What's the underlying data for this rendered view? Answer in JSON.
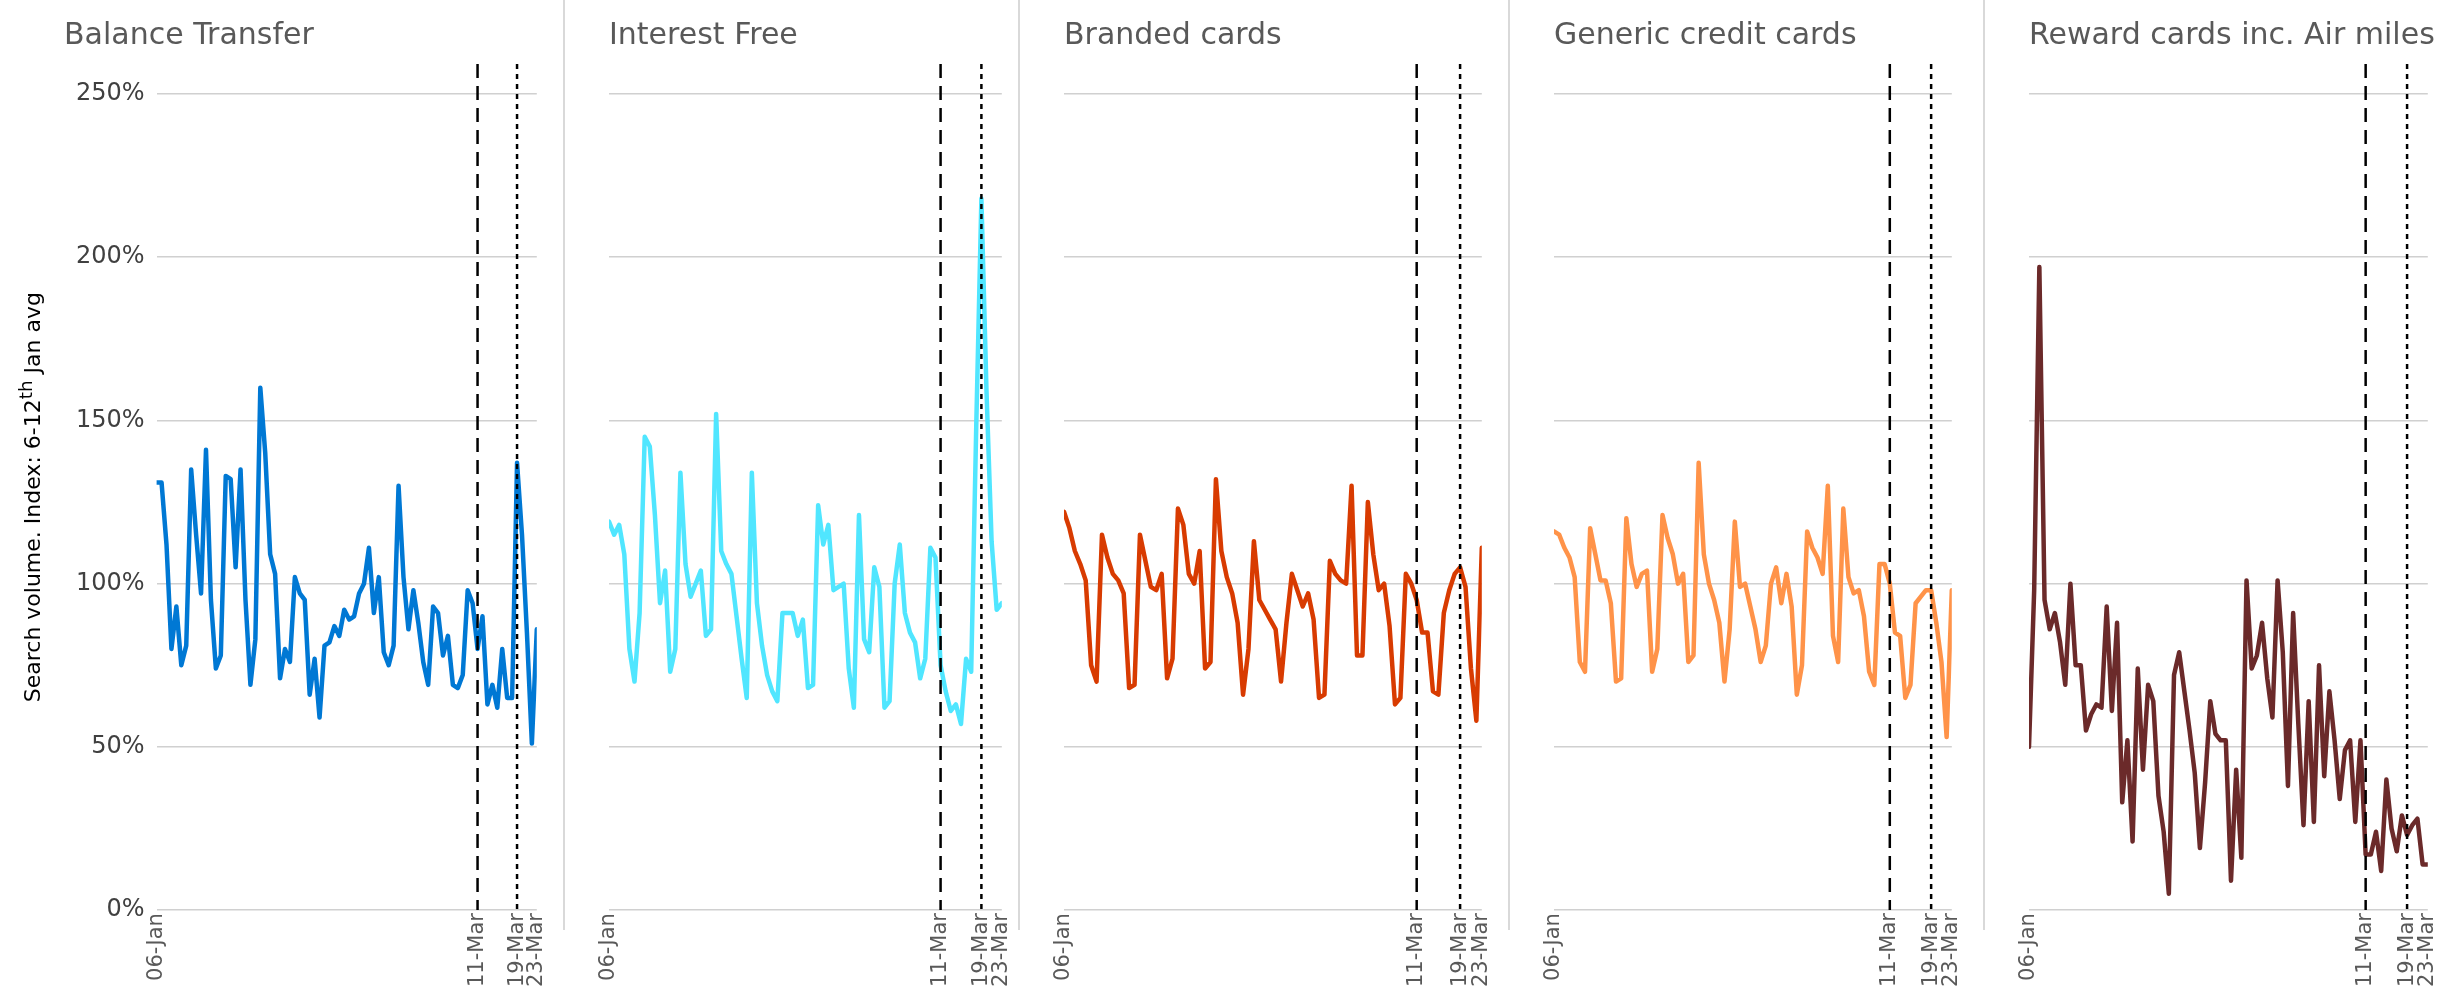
{
  "chart_data": [
    {
      "type": "line",
      "title": "Balance Transfer",
      "ylabel": "Search volume. Index: 6-12$^{th}$ Jan avg",
      "marker": "none",
      "grid": "y",
      "x": [
        "--01-06",
        "--01-07",
        "--01-08",
        "--01-09",
        "--01-10",
        "--01-11",
        "--01-12",
        "--01-13",
        "--01-14",
        "--01-15",
        "--01-16",
        "--01-17",
        "--01-18",
        "--01-19",
        "--01-20",
        "--01-21",
        "--01-22",
        "--01-23",
        "--01-24",
        "--01-25",
        "--01-26",
        "--01-27",
        "--01-28",
        "--01-29",
        "--01-30",
        "--01-31",
        "--02-01",
        "--02-02",
        "--02-03",
        "--02-04",
        "--02-05",
        "--02-06",
        "--02-07",
        "--02-08",
        "--02-09",
        "--02-10",
        "--02-11",
        "--02-12",
        "--02-13",
        "--02-14",
        "--02-15",
        "--02-16",
        "--02-17",
        "--02-18",
        "--02-19",
        "--02-20",
        "--02-21",
        "--02-22",
        "--02-23",
        "--02-24",
        "--02-25",
        "--02-26",
        "--02-27",
        "--02-28",
        "--02-29",
        "--03-01",
        "--03-02",
        "--03-03",
        "--03-04",
        "--03-05",
        "--03-06",
        "--03-07",
        "--03-08",
        "--03-09",
        "--03-10",
        "--03-11",
        "--03-12",
        "--03-13",
        "--03-14",
        "--03-15",
        "--03-16",
        "--03-17",
        "--03-18",
        "--03-19",
        "--03-20",
        "--03-21",
        "--03-22",
        "--03-23"
      ],
      "series": [
        {
          "color": "#0078d4",
          "values": [
            131,
            131,
            112,
            80,
            93,
            75,
            81,
            135,
            115,
            97,
            141,
            95,
            74,
            78,
            133,
            132,
            105,
            135,
            95,
            69,
            83,
            160,
            140,
            109,
            103,
            71,
            80,
            76,
            102,
            97,
            95,
            66,
            77,
            59,
            81,
            82,
            87,
            84,
            92,
            89,
            90,
            97,
            100,
            111,
            91,
            102,
            79,
            75,
            81,
            130,
            102,
            86,
            98,
            88,
            76,
            69,
            93,
            91,
            78,
            84,
            69,
            68,
            72,
            98,
            94,
            80,
            90,
            63,
            69,
            62,
            80,
            65,
            65,
            137,
            115,
            85,
            51,
            86
          ]
        }
      ],
      "xlim": [
        "--01-06",
        "--03-23"
      ],
      "xticks": [
        {
          "value": "--01-06",
          "label": "06-Jan"
        },
        {
          "value": "--03-11",
          "label": "11-Mar"
        },
        {
          "value": "--03-19",
          "label": "19-Mar"
        },
        {
          "value": "--03-23",
          "label": "23-Mar"
        }
      ],
      "ylim": [
        0,
        250
      ],
      "yticks": [
        {
          "value": 0,
          "label": "0%"
        },
        {
          "value": 50,
          "label": "50%"
        },
        {
          "value": 100,
          "label": "100%"
        },
        {
          "value": 150,
          "label": "150%"
        },
        {
          "value": 200,
          "label": "200%"
        },
        {
          "value": 250,
          "label": "250%"
        }
      ],
      "ref_lines": [
        {
          "axis": "x",
          "value": "--03-11",
          "color": "#000000",
          "line_style": "dashed"
        },
        {
          "axis": "x",
          "value": "--03-19",
          "color": "#000000",
          "line_style": "dotted"
        }
      ]
    },
    {
      "type": "line",
      "title": "Interest Free",
      "marker": "none",
      "grid": "y",
      "tick_labels": "x",
      "x": [
        "--01-06",
        "--01-07",
        "--01-08",
        "--01-09",
        "--01-10",
        "--01-11",
        "--01-12",
        "--01-13",
        "--01-14",
        "--01-15",
        "--01-16",
        "--01-17",
        "--01-18",
        "--01-19",
        "--01-20",
        "--01-21",
        "--01-22",
        "--01-23",
        "--01-24",
        "--01-25",
        "--01-26",
        "--01-27",
        "--01-28",
        "--01-29",
        "--01-30",
        "--01-31",
        "--02-01",
        "--02-02",
        "--02-03",
        "--02-04",
        "--02-05",
        "--02-06",
        "--02-07",
        "--02-08",
        "--02-09",
        "--02-10",
        "--02-11",
        "--02-12",
        "--02-13",
        "--02-14",
        "--02-15",
        "--02-16",
        "--02-17",
        "--02-18",
        "--02-19",
        "--02-20",
        "--02-21",
        "--02-22",
        "--02-23",
        "--02-24",
        "--02-25",
        "--02-26",
        "--02-27",
        "--02-28",
        "--02-29",
        "--03-01",
        "--03-02",
        "--03-03",
        "--03-04",
        "--03-05",
        "--03-06",
        "--03-07",
        "--03-08",
        "--03-09",
        "--03-10",
        "--03-11",
        "--03-12",
        "--03-13",
        "--03-14",
        "--03-15",
        "--03-16",
        "--03-17",
        "--03-18",
        "--03-19",
        "--03-20",
        "--03-21",
        "--03-22",
        "--03-23"
      ],
      "series": [
        {
          "color": "#50e6ff",
          "values": [
            119,
            115,
            118,
            109,
            80,
            70,
            91,
            145,
            142,
            121,
            94,
            104,
            73,
            80,
            134,
            106,
            96,
            100,
            104,
            84,
            86,
            152,
            110,
            106,
            103,
            90,
            77,
            65,
            134,
            94,
            81,
            72,
            67,
            64,
            91,
            91,
            91,
            84,
            89,
            68,
            69,
            124,
            112,
            118,
            98,
            99,
            100,
            74,
            62,
            121,
            83,
            79,
            105,
            99,
            62,
            64,
            100,
            112,
            91,
            85,
            82,
            71,
            77,
            111,
            108,
            75,
            67,
            61,
            63,
            57,
            77,
            73,
            149,
            218,
            159,
            113,
            92,
            94
          ]
        }
      ],
      "xlim": [
        "--01-06",
        "--03-23"
      ],
      "xticks": [
        {
          "value": "--01-06",
          "label": "06-Jan"
        },
        {
          "value": "--03-11",
          "label": "11-Mar"
        },
        {
          "value": "--03-19",
          "label": "19-Mar"
        },
        {
          "value": "--03-23",
          "label": "23-Mar"
        }
      ],
      "ylim": [
        0,
        250
      ],
      "yticks": [
        0,
        50,
        100,
        150,
        200,
        250
      ],
      "ref_lines": [
        {
          "axis": "x",
          "value": "--03-11",
          "color": "#000000",
          "line_style": "dashed"
        },
        {
          "axis": "x",
          "value": "--03-19",
          "color": "#000000",
          "line_style": "dotted"
        }
      ]
    },
    {
      "type": "line",
      "title": "Branded cards",
      "marker": "none",
      "grid": "y",
      "tick_labels": "x",
      "x": [
        "--01-06",
        "--01-07",
        "--01-08",
        "--01-09",
        "--01-10",
        "--01-11",
        "--01-12",
        "--01-13",
        "--01-14",
        "--01-15",
        "--01-16",
        "--01-17",
        "--01-18",
        "--01-19",
        "--01-20",
        "--01-21",
        "--01-22",
        "--01-23",
        "--01-24",
        "--01-25",
        "--01-26",
        "--01-27",
        "--01-28",
        "--01-29",
        "--01-30",
        "--01-31",
        "--02-01",
        "--02-02",
        "--02-03",
        "--02-04",
        "--02-05",
        "--02-06",
        "--02-07",
        "--02-08",
        "--02-09",
        "--02-10",
        "--02-11",
        "--02-12",
        "--02-13",
        "--02-14",
        "--02-15",
        "--02-16",
        "--02-17",
        "--02-18",
        "--02-19",
        "--02-20",
        "--02-21",
        "--02-22",
        "--02-23",
        "--02-24",
        "--02-25",
        "--02-26",
        "--02-27",
        "--02-28",
        "--02-29",
        "--03-01",
        "--03-02",
        "--03-03",
        "--03-04",
        "--03-05",
        "--03-06",
        "--03-07",
        "--03-08",
        "--03-09",
        "--03-10",
        "--03-11",
        "--03-12",
        "--03-13",
        "--03-14",
        "--03-15",
        "--03-16",
        "--03-17",
        "--03-18",
        "--03-19",
        "--03-20",
        "--03-21",
        "--03-22",
        "--03-23"
      ],
      "series": [
        {
          "color": "#d83b01",
          "values": [
            122,
            117,
            110,
            106,
            101,
            75,
            70,
            115,
            108,
            103,
            101,
            97,
            68,
            69,
            115,
            107,
            99,
            98,
            103,
            71,
            77,
            123,
            118,
            103,
            100,
            110,
            74,
            76,
            132,
            110,
            102,
            97,
            88,
            66,
            80,
            113,
            95,
            92,
            89,
            86,
            70,
            88,
            103,
            98,
            93,
            97,
            89,
            65,
            66,
            107,
            103,
            101,
            100,
            130,
            78,
            78,
            125,
            109,
            98,
            100,
            87,
            63,
            65,
            103,
            100,
            95,
            85,
            85,
            67,
            66,
            91,
            98,
            103,
            105,
            99,
            74,
            58,
            111
          ]
        }
      ],
      "xlim": [
        "--01-06",
        "--03-23"
      ],
      "xticks": [
        {
          "value": "--01-06",
          "label": "06-Jan"
        },
        {
          "value": "--03-11",
          "label": "11-Mar"
        },
        {
          "value": "--03-19",
          "label": "19-Mar"
        },
        {
          "value": "--03-23",
          "label": "23-Mar"
        }
      ],
      "ylim": [
        0,
        250
      ],
      "yticks": [
        0,
        50,
        100,
        150,
        200,
        250
      ],
      "ref_lines": [
        {
          "axis": "x",
          "value": "--03-11",
          "color": "#000000",
          "line_style": "dashed"
        },
        {
          "axis": "x",
          "value": "--03-19",
          "color": "#000000",
          "line_style": "dotted"
        }
      ]
    },
    {
      "type": "line",
      "title": "Generic credit cards",
      "marker": "none",
      "grid": "y",
      "tick_labels": "x",
      "x": [
        "--01-06",
        "--01-07",
        "--01-08",
        "--01-09",
        "--01-10",
        "--01-11",
        "--01-12",
        "--01-13",
        "--01-14",
        "--01-15",
        "--01-16",
        "--01-17",
        "--01-18",
        "--01-19",
        "--01-20",
        "--01-21",
        "--01-22",
        "--01-23",
        "--01-24",
        "--01-25",
        "--01-26",
        "--01-27",
        "--01-28",
        "--01-29",
        "--01-30",
        "--01-31",
        "--02-01",
        "--02-02",
        "--02-03",
        "--02-04",
        "--02-05",
        "--02-06",
        "--02-07",
        "--02-08",
        "--02-09",
        "--02-10",
        "--02-11",
        "--02-12",
        "--02-13",
        "--02-14",
        "--02-15",
        "--02-16",
        "--02-17",
        "--02-18",
        "--02-19",
        "--02-20",
        "--02-21",
        "--02-22",
        "--02-23",
        "--02-24",
        "--02-25",
        "--02-26",
        "--02-27",
        "--02-28",
        "--02-29",
        "--03-01",
        "--03-02",
        "--03-03",
        "--03-04",
        "--03-05",
        "--03-06",
        "--03-07",
        "--03-08",
        "--03-09",
        "--03-10",
        "--03-11",
        "--03-12",
        "--03-13",
        "--03-14",
        "--03-15",
        "--03-16",
        "--03-17",
        "--03-18",
        "--03-19",
        "--03-20",
        "--03-21",
        "--03-22",
        "--03-23"
      ],
      "series": [
        {
          "color": "#ff9349",
          "values": [
            116,
            115,
            111,
            108,
            102,
            76,
            73,
            117,
            109,
            101,
            101,
            94,
            70,
            71,
            120,
            106,
            99,
            103,
            104,
            73,
            80,
            121,
            114,
            109,
            100,
            103,
            76,
            78,
            137,
            109,
            100,
            95,
            88,
            70,
            86,
            119,
            99,
            100,
            93,
            86,
            76,
            81,
            100,
            105,
            94,
            103,
            93,
            66,
            75,
            116,
            111,
            108,
            103,
            130,
            84,
            76,
            123,
            102,
            97,
            98,
            90,
            73,
            69,
            106,
            106,
            100,
            85,
            84,
            65,
            69,
            94,
            96,
            98,
            98,
            88,
            76,
            53,
            98
          ]
        }
      ],
      "xlim": [
        "--01-06",
        "--03-23"
      ],
      "xticks": [
        {
          "value": "--01-06",
          "label": "06-Jan"
        },
        {
          "value": "--03-11",
          "label": "11-Mar"
        },
        {
          "value": "--03-19",
          "label": "19-Mar"
        },
        {
          "value": "--03-23",
          "label": "23-Mar"
        }
      ],
      "ylim": [
        0,
        250
      ],
      "yticks": [
        0,
        50,
        100,
        150,
        200,
        250
      ],
      "ref_lines": [
        {
          "axis": "x",
          "value": "--03-11",
          "color": "#000000",
          "line_style": "dashed"
        },
        {
          "axis": "x",
          "value": "--03-19",
          "color": "#000000",
          "line_style": "dotted"
        }
      ]
    },
    {
      "type": "line",
      "title": "Reward cards inc. Air miles",
      "marker": "none",
      "grid": "y",
      "tick_labels": "x",
      "x": [
        "--01-06",
        "--01-07",
        "--01-08",
        "--01-09",
        "--01-10",
        "--01-11",
        "--01-12",
        "--01-13",
        "--01-14",
        "--01-15",
        "--01-16",
        "--01-17",
        "--01-18",
        "--01-19",
        "--01-20",
        "--01-21",
        "--01-22",
        "--01-23",
        "--01-24",
        "--01-25",
        "--01-26",
        "--01-27",
        "--01-28",
        "--01-29",
        "--01-30",
        "--01-31",
        "--02-01",
        "--02-02",
        "--02-03",
        "--02-04",
        "--02-05",
        "--02-06",
        "--02-07",
        "--02-08",
        "--02-09",
        "--02-10",
        "--02-11",
        "--02-12",
        "--02-13",
        "--02-14",
        "--02-15",
        "--02-16",
        "--02-17",
        "--02-18",
        "--02-19",
        "--02-20",
        "--02-21",
        "--02-22",
        "--02-23",
        "--02-24",
        "--02-25",
        "--02-26",
        "--02-27",
        "--02-28",
        "--02-29",
        "--03-01",
        "--03-02",
        "--03-03",
        "--03-04",
        "--03-05",
        "--03-06",
        "--03-07",
        "--03-08",
        "--03-09",
        "--03-10",
        "--03-11",
        "--03-12",
        "--03-13",
        "--03-14",
        "--03-15",
        "--03-16",
        "--03-17",
        "--03-18",
        "--03-19",
        "--03-20",
        "--03-21",
        "--03-22",
        "--03-23"
      ],
      "series": [
        {
          "color": "#6b2a2a",
          "values": [
            50,
            98,
            197,
            95,
            86,
            91,
            82,
            69,
            100,
            75,
            75,
            55,
            60,
            63,
            62,
            93,
            61,
            88,
            33,
            52,
            21,
            74,
            43,
            69,
            64,
            35,
            24,
            5,
            72,
            79,
            67,
            55,
            42,
            19,
            39,
            64,
            54,
            52,
            52,
            9,
            43,
            16,
            101,
            74,
            78,
            88,
            71,
            59,
            101,
            79,
            38,
            91,
            57,
            26,
            64,
            27,
            75,
            41,
            67,
            52,
            34,
            49,
            52,
            27,
            52,
            17,
            17,
            24,
            12,
            40,
            25,
            18,
            29,
            23,
            26,
            28,
            14,
            14
          ]
        }
      ],
      "xlim": [
        "--01-06",
        "--03-23"
      ],
      "xticks": [
        {
          "value": "--01-06",
          "label": "06-Jan"
        },
        {
          "value": "--03-11",
          "label": "11-Mar"
        },
        {
          "value": "--03-19",
          "label": "19-Mar"
        },
        {
          "value": "--03-23",
          "label": "23-Mar"
        }
      ],
      "ylim": [
        0,
        250
      ],
      "yticks": [
        0,
        50,
        100,
        150,
        200,
        250
      ],
      "ref_lines": [
        {
          "axis": "x",
          "value": "--03-11",
          "color": "#000000",
          "line_style": "dashed"
        },
        {
          "axis": "x",
          "value": "--03-19",
          "color": "#000000",
          "line_style": "dotted"
        }
      ]
    }
  ]
}
